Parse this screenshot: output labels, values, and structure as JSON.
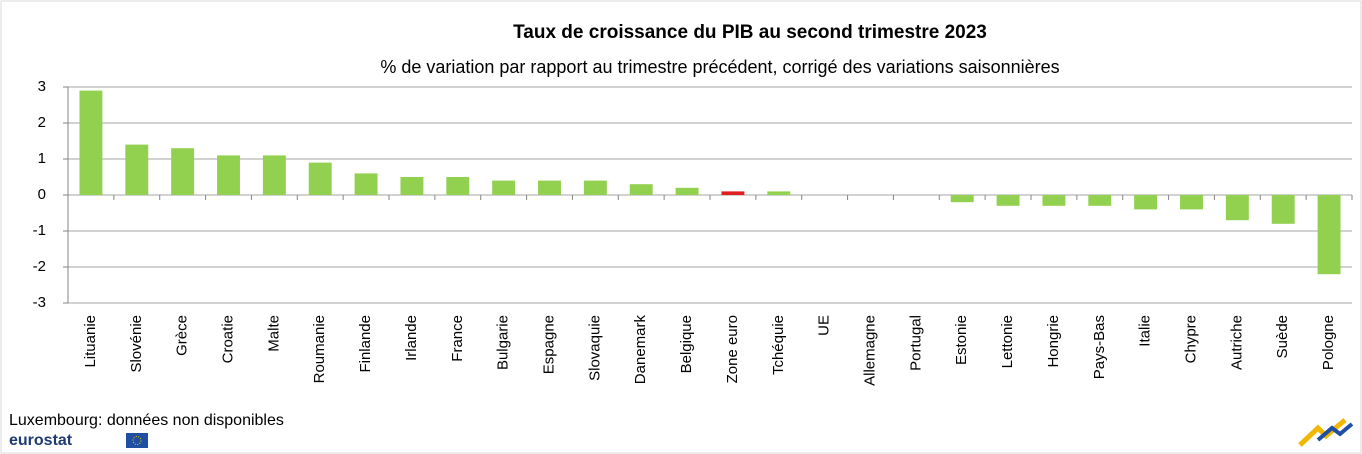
{
  "chart_data": {
    "type": "bar",
    "title": "Taux de croissance du PIB au second trimestre 2023",
    "subtitle": "% de variation par rapport au trimestre précédent, corrigé des variations saisonnières",
    "categories": [
      "Lituanie",
      "Slovénie",
      "Grèce",
      "Croatie",
      "Malte",
      "Roumanie",
      "Finlande",
      "Irlande",
      "France",
      "Bulgarie",
      "Espagne",
      "Slovaquie",
      "Danemark",
      "Belgique",
      "Zone euro",
      "Tchéquie",
      "UE",
      "Allemagne",
      "Portugal",
      "Estonie",
      "Lettonie",
      "Hongrie",
      "Pays-Bas",
      "Italie",
      "Chypre",
      "Autriche",
      "Suède",
      "Pologne"
    ],
    "values": [
      2.9,
      1.4,
      1.3,
      1.1,
      1.1,
      0.9,
      0.6,
      0.5,
      0.5,
      0.4,
      0.4,
      0.4,
      0.3,
      0.2,
      0.1,
      0.1,
      0,
      0,
      0,
      -0.2,
      -0.3,
      -0.3,
      -0.3,
      -0.4,
      -0.4,
      -0.7,
      -0.8,
      -2.2
    ],
    "colors": [
      "#92d050",
      "#92d050",
      "#92d050",
      "#92d050",
      "#92d050",
      "#92d050",
      "#92d050",
      "#92d050",
      "#92d050",
      "#92d050",
      "#92d050",
      "#92d050",
      "#92d050",
      "#92d050",
      "#e02020",
      "#92d050",
      "#92d050",
      "#92d050",
      "#92d050",
      "#92d050",
      "#92d050",
      "#92d050",
      "#92d050",
      "#92d050",
      "#92d050",
      "#92d050",
      "#92d050",
      "#92d050"
    ],
    "ylim": [
      -3,
      3
    ],
    "yticks": [
      -3,
      -2,
      -1,
      0,
      1,
      2,
      3
    ],
    "grid": true,
    "note": "Luxembourg:  données  non disponibles",
    "logo": "eurostat"
  }
}
